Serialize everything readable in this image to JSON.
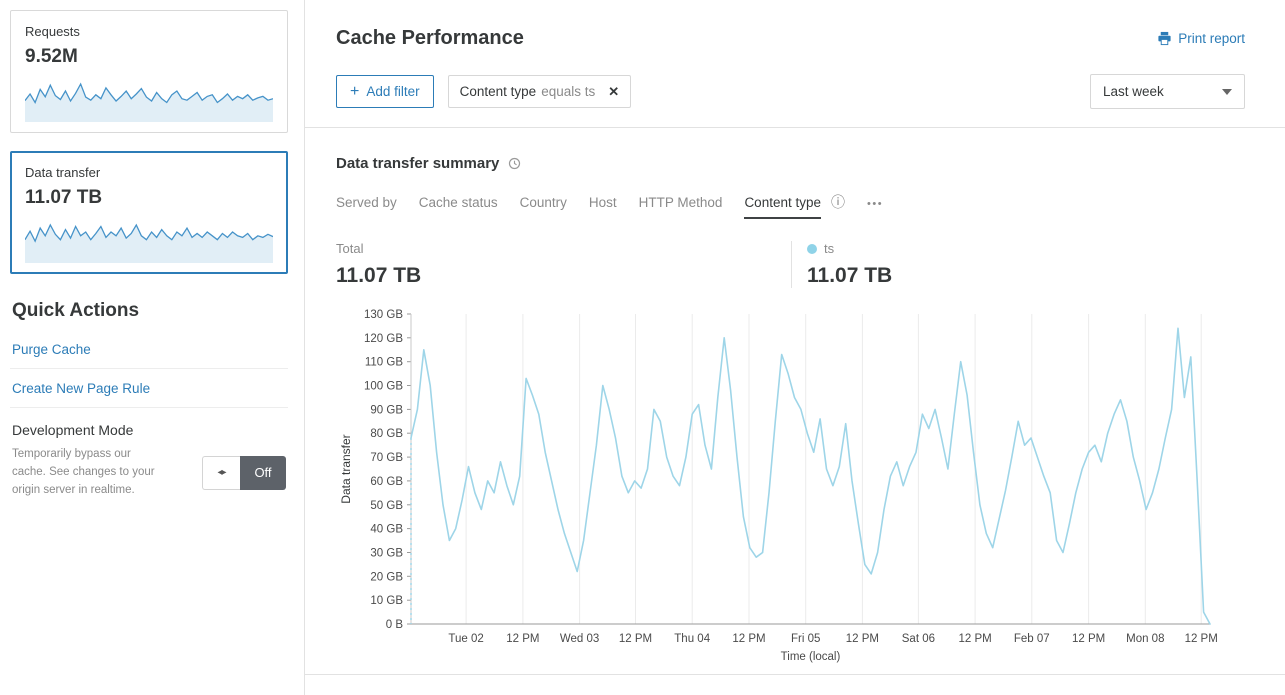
{
  "colors": {
    "accent": "#2c7cb7",
    "series_line": "#9ed5e8",
    "legend_dot": "#8fd3e8",
    "spark_line": "#4693c9",
    "spark_fill": "rgba(70,147,201,0.16)"
  },
  "sidebar": {
    "cards": [
      {
        "label": "Requests",
        "value": "9.52M"
      },
      {
        "label": "Data transfer",
        "value": "11.07 TB"
      }
    ],
    "quick_actions_title": "Quick Actions",
    "links": [
      {
        "label": "Purge Cache"
      },
      {
        "label": "Create New Page Rule"
      }
    ],
    "dev_mode": {
      "title": "Development Mode",
      "description": "Temporarily bypass our cache. See changes to your origin server in realtime.",
      "toggle_icon": "◂▸",
      "state": "Off"
    }
  },
  "header": {
    "title": "Cache Performance",
    "print_label": "Print report"
  },
  "filter_bar": {
    "add_filter_plus": "+",
    "add_filter_label": "Add filter",
    "chip": {
      "field": "Content type",
      "condition": "equals ts",
      "close_icon": "✕"
    },
    "time_range": "Last week"
  },
  "summary": {
    "title": "Data transfer summary",
    "tabs": [
      {
        "label": "Served by"
      },
      {
        "label": "Cache status"
      },
      {
        "label": "Country"
      },
      {
        "label": "Host"
      },
      {
        "label": "HTTP Method"
      },
      {
        "label": "Content type",
        "active": true
      }
    ],
    "info_icon": "ⓘ",
    "more_icon": "•••",
    "total_label": "Total",
    "total_value": "11.07 TB",
    "legend": {
      "name": "ts",
      "value": "11.07 TB"
    }
  },
  "chart_data": [
    {
      "type": "line",
      "title": "Data transfer summary",
      "xlabel": "Time (local)",
      "ylabel": "Data transfer",
      "ylim": [
        0,
        130
      ],
      "unit": "GB",
      "grid": "vertical",
      "line_color": "#9ed5e8",
      "y_ticks": [
        {
          "v": 0,
          "label": "0 B"
        },
        {
          "v": 10,
          "label": "10 GB"
        },
        {
          "v": 20,
          "label": "20 GB"
        },
        {
          "v": 30,
          "label": "30 GB"
        },
        {
          "v": 40,
          "label": "40 GB"
        },
        {
          "v": 50,
          "label": "50 GB"
        },
        {
          "v": 60,
          "label": "60 GB"
        },
        {
          "v": 70,
          "label": "70 GB"
        },
        {
          "v": 80,
          "label": "80 GB"
        },
        {
          "v": 90,
          "label": "90 GB"
        },
        {
          "v": 100,
          "label": "100 GB"
        },
        {
          "v": 110,
          "label": "110 GB"
        },
        {
          "v": 120,
          "label": "120 GB"
        },
        {
          "v": 130,
          "label": "130 GB"
        }
      ],
      "x_ticks": [
        {
          "pos": 0.069,
          "label": "Tue 02"
        },
        {
          "pos": 0.14,
          "label": "12 PM"
        },
        {
          "pos": 0.211,
          "label": "Wed 03"
        },
        {
          "pos": 0.281,
          "label": "12 PM"
        },
        {
          "pos": 0.352,
          "label": "Thu 04"
        },
        {
          "pos": 0.423,
          "label": "12 PM"
        },
        {
          "pos": 0.494,
          "label": "Fri 05"
        },
        {
          "pos": 0.565,
          "label": "12 PM"
        },
        {
          "pos": 0.635,
          "label": "Sat 06"
        },
        {
          "pos": 0.706,
          "label": "12 PM"
        },
        {
          "pos": 0.777,
          "label": "Feb 07"
        },
        {
          "pos": 0.848,
          "label": "12 PM"
        },
        {
          "pos": 0.919,
          "label": "Mon 08"
        },
        {
          "pos": 0.989,
          "label": "12 PM"
        }
      ],
      "series": [
        {
          "name": "ts",
          "values": [
            78,
            90,
            115,
            100,
            72,
            50,
            35,
            40,
            52,
            66,
            55,
            48,
            60,
            55,
            68,
            58,
            50,
            62,
            103,
            96,
            88,
            72,
            60,
            48,
            38,
            30,
            22,
            35,
            55,
            75,
            100,
            90,
            78,
            62,
            55,
            60,
            57,
            65,
            90,
            85,
            70,
            62,
            58,
            70,
            88,
            92,
            75,
            65,
            95,
            120,
            98,
            70,
            45,
            32,
            28,
            30,
            55,
            85,
            113,
            105,
            95,
            90,
            80,
            72,
            86,
            65,
            58,
            66,
            84,
            60,
            42,
            25,
            21,
            30,
            48,
            62,
            68,
            58,
            66,
            72,
            88,
            82,
            90,
            78,
            65,
            88,
            110,
            96,
            72,
            50,
            38,
            32,
            44,
            56,
            70,
            85,
            75,
            78,
            70,
            62,
            55,
            35,
            30,
            42,
            55,
            65,
            72,
            75,
            68,
            80,
            88,
            94,
            85,
            70,
            60,
            48,
            55,
            65,
            78,
            90,
            124,
            95,
            112,
            60,
            5,
            0
          ]
        }
      ]
    },
    {
      "type": "line",
      "name": "requests_sparkline",
      "values": [
        45,
        62,
        40,
        74,
        55,
        85,
        58,
        48,
        70,
        44,
        64,
        88,
        54,
        46,
        60,
        50,
        78,
        60,
        44,
        56,
        70,
        50,
        62,
        76,
        54,
        44,
        66,
        50,
        40,
        60,
        70,
        50,
        46,
        56,
        66,
        46,
        56,
        60,
        40,
        50,
        62,
        46,
        56,
        50,
        60,
        46,
        52,
        56,
        46,
        50
      ]
    },
    {
      "type": "line",
      "name": "data_transfer_sparkline",
      "values": [
        50,
        72,
        46,
        80,
        60,
        88,
        64,
        50,
        76,
        54,
        84,
        60,
        70,
        50,
        66,
        84,
        56,
        70,
        60,
        80,
        54,
        66,
        88,
        60,
        50,
        70,
        56,
        76,
        60,
        50,
        70,
        60,
        80,
        56,
        66,
        56,
        70,
        60,
        50,
        66,
        56,
        70,
        60,
        56,
        66,
        50,
        60,
        56,
        64,
        58
      ]
    }
  ]
}
